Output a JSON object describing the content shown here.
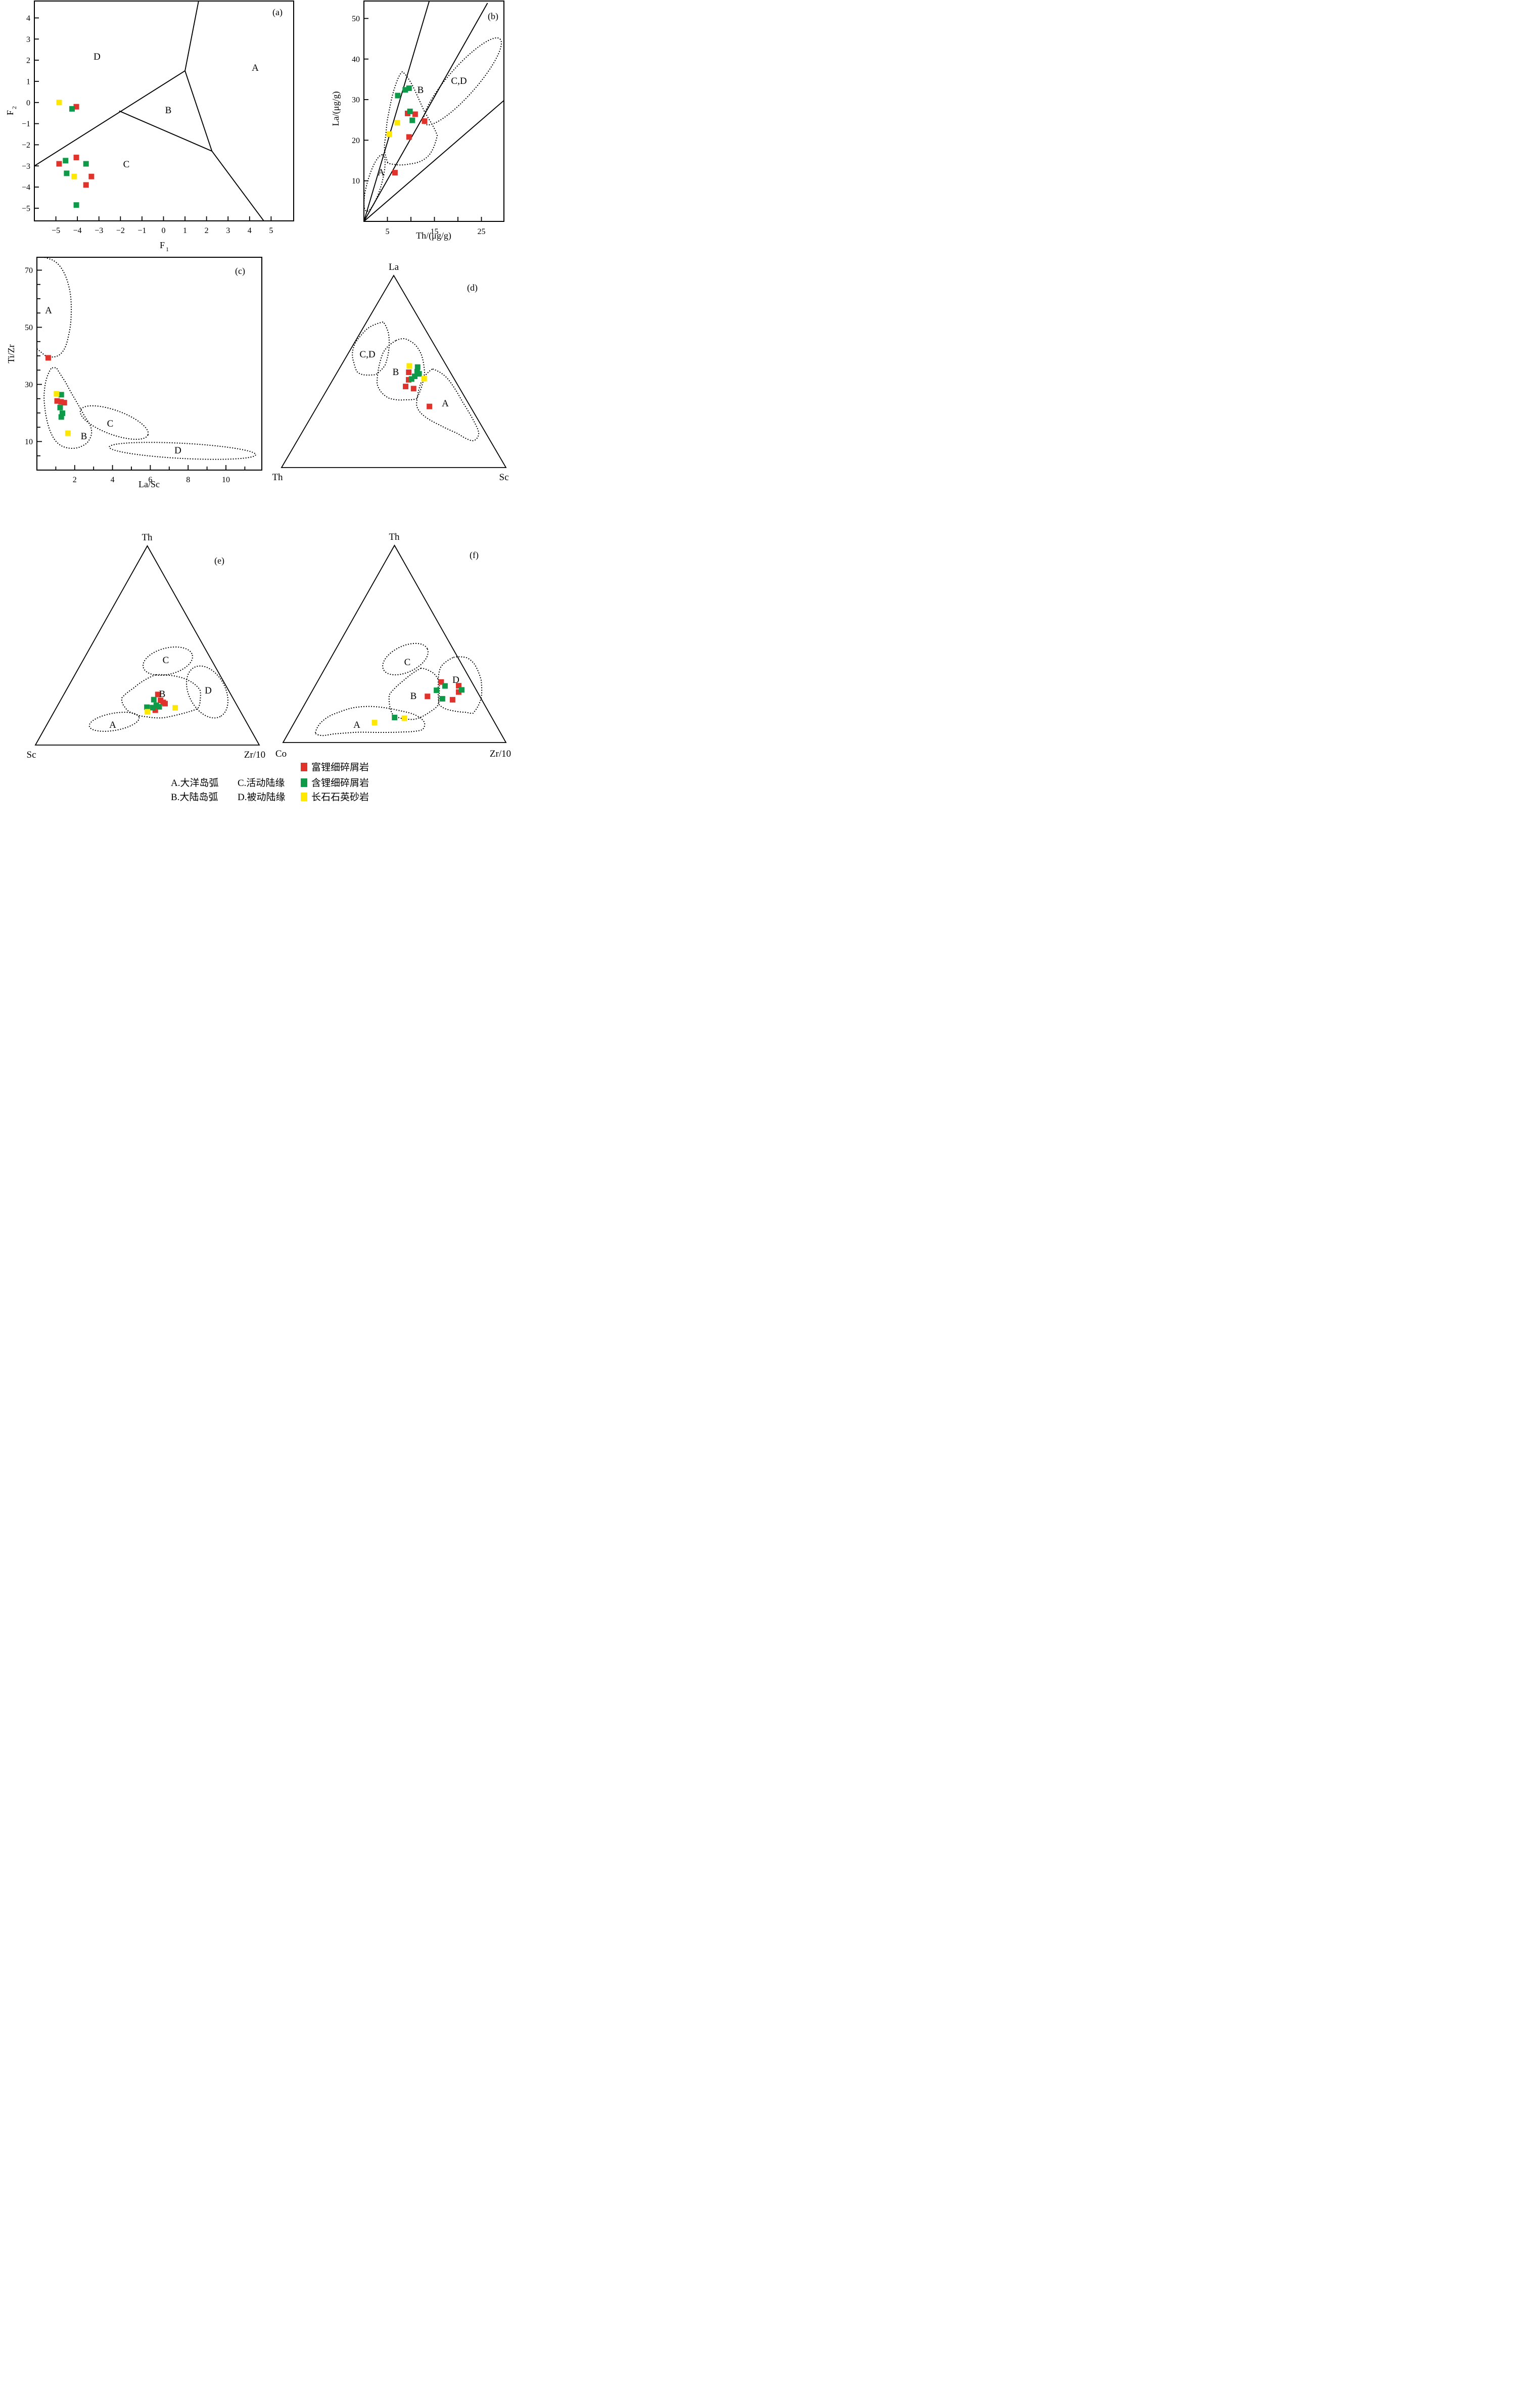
{
  "legend": {
    "series": [
      {
        "name": "富锂细碎屑岩",
        "color": "#e0332c"
      },
      {
        "name": "含锂细碎屑岩",
        "color": "#0f9a49"
      },
      {
        "name": "长石石英砂岩",
        "color": "#ffe800"
      }
    ],
    "classes": [
      {
        "label": "A.大洋岛弧"
      },
      {
        "label": "B.大陆岛弧"
      },
      {
        "label": "C.活动陆缘"
      },
      {
        "label": "D.被动陆缘"
      }
    ]
  },
  "chart_data": [
    {
      "id": "a",
      "tag": "(a)",
      "type": "scatter",
      "xlabel": "F1",
      "xlabel_base": "F",
      "xlabel_sub": "1",
      "ylabel": "F2",
      "ylabel_base": "F",
      "ylabel_sub": "2",
      "xlim": [
        -6,
        6.05
      ],
      "ylim": [
        -5.6,
        4.8
      ],
      "xticks": [
        -5,
        -4,
        -3,
        -2,
        -1,
        0,
        1,
        2,
        3,
        4,
        5
      ],
      "yticks": [
        4,
        3,
        2,
        1,
        0,
        -1,
        -2,
        -3,
        -4,
        -5
      ],
      "fields": {
        "A": "A",
        "B": "B",
        "C": "C",
        "D": "D"
      },
      "boundaries": [
        [
          [
            -6,
            -3.0
          ],
          [
            1.0,
            1.5
          ]
        ],
        [
          [
            1.0,
            1.5
          ],
          [
            1.63,
            4.8
          ]
        ],
        [
          [
            1.0,
            1.5
          ],
          [
            2.25,
            -2.3
          ]
        ],
        [
          [
            -2.06,
            -0.4
          ],
          [
            2.25,
            -2.3
          ]
        ],
        [
          [
            2.25,
            -2.3
          ],
          [
            4.66,
            -5.6
          ]
        ]
      ],
      "series": [
        {
          "legend": 0,
          "points": [
            [
              -4.05,
              -0.2
            ],
            [
              -4.05,
              -2.6
            ],
            [
              -4.85,
              -2.9
            ],
            [
              -3.35,
              -3.5
            ],
            [
              -3.6,
              -3.9
            ]
          ]
        },
        {
          "legend": 1,
          "points": [
            [
              -4.25,
              -0.3
            ],
            [
              -4.55,
              -2.75
            ],
            [
              -3.6,
              -2.9
            ],
            [
              -4.5,
              -3.35
            ],
            [
              -4.05,
              -4.85
            ]
          ]
        },
        {
          "legend": 2,
          "points": [
            [
              -4.85,
              0.0
            ],
            [
              -4.15,
              -3.5
            ]
          ]
        }
      ]
    },
    {
      "id": "b",
      "tag": "(b)",
      "type": "scatter",
      "xlabel": "Th/(μg/g)",
      "ylabel": "La/(μg/g)",
      "xlim": [
        0,
        29.8
      ],
      "ylim": [
        0,
        54.3
      ],
      "xticks": [
        5,
        15,
        25
      ],
      "xticks_minor": [
        10,
        20
      ],
      "yticks": [
        10,
        20,
        30,
        40,
        50
      ],
      "fields": {
        "A": "A",
        "B": "B",
        "CD": "C,D"
      },
      "boundaries": [
        [
          [
            0,
            0
          ],
          [
            13.9,
            54.3
          ]
        ],
        [
          [
            0,
            0
          ],
          [
            26.3,
            53.8
          ]
        ],
        [
          [
            0,
            0
          ],
          [
            29.8,
            29.8
          ]
        ]
      ],
      "series": [
        {
          "legend": 0,
          "points": [
            [
              9.3,
              26.6
            ],
            [
              10.9,
              26.4
            ],
            [
              12.9,
              24.7
            ],
            [
              9.6,
              20.8
            ],
            [
              6.6,
              12.0
            ]
          ]
        },
        {
          "legend": 1,
          "points": [
            [
              8.8,
              32.4
            ],
            [
              9.6,
              32.8
            ],
            [
              7.2,
              31.0
            ],
            [
              9.8,
              27.1
            ],
            [
              10.3,
              24.9
            ]
          ]
        },
        {
          "legend": 2,
          "points": [
            [
              7.1,
              24.3
            ],
            [
              5.4,
              21.5
            ]
          ]
        }
      ]
    },
    {
      "id": "c",
      "tag": "(c)",
      "type": "scatter",
      "xlabel": "La/Sc",
      "ylabel": "Ti/Zr",
      "xlim": [
        0,
        11.9
      ],
      "ylim": [
        0,
        74.5
      ],
      "xticks": [
        2,
        4,
        6,
        8,
        10
      ],
      "xticks_minor": [
        1,
        3,
        5,
        7,
        9,
        11
      ],
      "yticks": [
        10,
        30,
        50,
        70
      ],
      "yticks_minor": [
        5,
        15,
        20,
        25,
        35,
        40,
        45,
        55,
        60,
        65
      ],
      "fields": {
        "A": "A",
        "B": "B",
        "C": "C",
        "D": "D"
      },
      "boundaries": [],
      "series": [
        {
          "legend": 0,
          "points": [
            [
              0.6,
              39.3
            ],
            [
              1.07,
              24.2
            ],
            [
              1.45,
              23.6
            ],
            [
              1.28,
              23.9
            ]
          ]
        },
        {
          "legend": 1,
          "points": [
            [
              1.29,
              26.4
            ],
            [
              1.23,
              21.9
            ],
            [
              1.35,
              19.9
            ],
            [
              1.29,
              18.6
            ]
          ]
        },
        {
          "legend": 2,
          "points": [
            [
              1.04,
              26.7
            ],
            [
              1.64,
              12.9
            ]
          ]
        }
      ]
    },
    {
      "id": "d",
      "tag": "(d)",
      "type": "ternary-scatter",
      "vertices": {
        "top": "La",
        "left": "Th",
        "right": "Sc"
      },
      "fields": {
        "CD": "C,D",
        "B": "B",
        "A": "A"
      },
      "series": [
        {
          "legend": 0,
          "points": [
            [
              0.496,
              0.185,
              0.319
            ],
            [
              0.457,
              0.205,
              0.338
            ],
            [
              0.422,
              0.236,
              0.342
            ],
            [
              0.411,
              0.206,
              0.383
            ],
            [
              0.318,
              0.182,
              0.5
            ]
          ]
        },
        {
          "legend": 1,
          "points": [
            [
              0.523,
              0.132,
              0.345
            ],
            [
              0.499,
              0.146,
              0.355
            ],
            [
              0.488,
              0.143,
              0.369
            ],
            [
              0.461,
              0.19,
              0.349
            ],
            [
              0.475,
              0.169,
              0.356
            ]
          ]
        },
        {
          "legend": 2,
          "points": [
            [
              0.529,
              0.166,
              0.305
            ],
            [
              0.463,
              0.133,
              0.404
            ]
          ]
        }
      ]
    },
    {
      "id": "e",
      "tag": "(e)",
      "type": "ternary-scatter",
      "vertices": {
        "top": "Th",
        "left": "Sc",
        "right": "Zr/10"
      },
      "fields": {
        "A": "A",
        "B": "B",
        "C": "C",
        "D": "D"
      },
      "series": [
        {
          "legend": 0,
          "points": [
            [
              0.254,
              0.326,
              0.42
            ],
            [
              0.224,
              0.329,
              0.447
            ],
            [
              0.214,
              0.322,
              0.464
            ],
            [
              0.208,
              0.317,
              0.475
            ],
            [
              0.175,
              0.377,
              0.448
            ]
          ]
        },
        {
          "legend": 1,
          "points": [
            [
              0.228,
              0.357,
              0.415
            ],
            [
              0.192,
              0.351,
              0.457
            ],
            [
              0.19,
              0.407,
              0.403
            ],
            [
              0.188,
              0.383,
              0.429
            ],
            [
              0.2,
              0.36,
              0.44
            ]
          ]
        },
        {
          "legend": 2,
          "points": [
            [
              0.167,
              0.416,
              0.417
            ],
            [
              0.187,
              0.282,
              0.531
            ]
          ]
        }
      ]
    },
    {
      "id": "f",
      "tag": "(f)",
      "type": "ternary-scatter",
      "vertices": {
        "top": "Th",
        "left": "Co",
        "right": "Zr/10"
      },
      "fields": {
        "A": "A",
        "B": "B",
        "C": "C",
        "D": "D"
      },
      "series": [
        {
          "legend": 0,
          "points": [
            [
              0.307,
              0.137,
              0.556
            ],
            [
              0.288,
              0.068,
              0.644
            ],
            [
              0.256,
              0.084,
              0.66
            ],
            [
              0.234,
              0.235,
              0.531
            ],
            [
              0.217,
              0.131,
              0.652
            ]
          ]
        },
        {
          "legend": 1,
          "points": [
            [
              0.287,
              0.13,
              0.583
            ],
            [
              0.267,
              0.065,
              0.668
            ],
            [
              0.265,
              0.179,
              0.556
            ],
            [
              0.222,
              0.174,
              0.604
            ],
            [
              0.127,
              0.436,
              0.437
            ]
          ]
        },
        {
          "legend": 2,
          "points": [
            [
              0.123,
              0.394,
              0.483
            ],
            [
              0.101,
              0.539,
              0.36
            ]
          ]
        }
      ]
    }
  ]
}
